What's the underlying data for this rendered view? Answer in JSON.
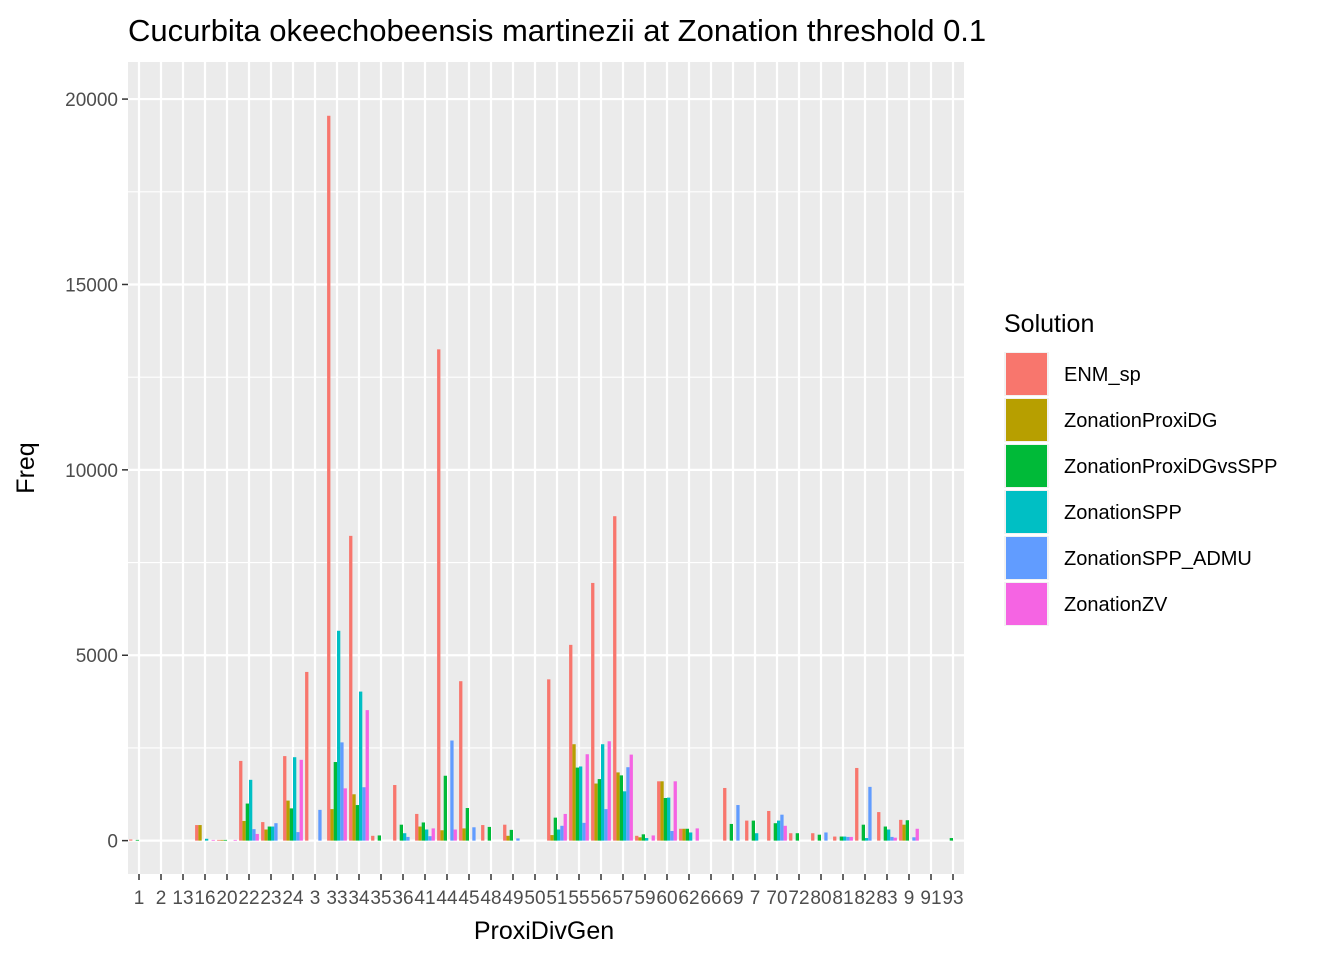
{
  "chart_data": {
    "type": "bar",
    "title": "Cucurbita okeechobeensis martinezii at Zonation threshold 0.1",
    "xlabel": "ProxiDivGen",
    "ylabel": "Freq",
    "ylim": [
      -900,
      21000
    ],
    "yticks": [
      0,
      5000,
      10000,
      15000,
      20000
    ],
    "grid": true,
    "legend_position": "right",
    "legend_title": "Solution",
    "categories": [
      "1",
      "2",
      "13",
      "16",
      "20",
      "22",
      "23",
      "24",
      "3",
      "33",
      "34",
      "35",
      "36",
      "41",
      "44",
      "45",
      "48",
      "49",
      "50",
      "51",
      "55",
      "56",
      "57",
      "59",
      "60",
      "62",
      "66",
      "69",
      "7",
      "70",
      "72",
      "80",
      "81",
      "82",
      "83",
      "9",
      "91",
      "93"
    ],
    "x_tick_labels": [
      "1",
      "2",
      "13",
      "16",
      "20",
      "22",
      "23",
      "24",
      "3",
      "33",
      "34",
      "35",
      "36",
      "41",
      "44",
      "45",
      "48",
      "49",
      "50",
      "51",
      "55",
      "56",
      "57",
      "59",
      "60",
      "62",
      "66",
      "69",
      "7",
      "70",
      "72",
      "80",
      "81",
      "82",
      "83",
      "9",
      "91",
      "93"
    ],
    "series": [
      {
        "name": "ENM_sp",
        "color": "#F8766D",
        "values": [
          30,
          0,
          0,
          420,
          20,
          2150,
          500,
          2280,
          4550,
          19550,
          8220,
          130,
          1500,
          720,
          13250,
          4300,
          420,
          430,
          0,
          4350,
          5280,
          6950,
          8750,
          130,
          1600,
          320,
          0,
          1420,
          540,
          800,
          200,
          200,
          110,
          1960,
          770,
          560,
          0,
          0
        ]
      },
      {
        "name": "ZonationProxiDG",
        "color": "#B79F00",
        "values": [
          0,
          0,
          0,
          420,
          20,
          530,
          300,
          1080,
          0,
          850,
          1250,
          0,
          0,
          380,
          280,
          330,
          0,
          130,
          0,
          150,
          2600,
          1540,
          1840,
          90,
          1600,
          320,
          0,
          0,
          0,
          0,
          0,
          0,
          0,
          0,
          0,
          430,
          0,
          0
        ]
      },
      {
        "name": "ZonationProxiDGvsSPP",
        "color": "#00BA38",
        "values": [
          20,
          0,
          0,
          0,
          20,
          1000,
          380,
          870,
          0,
          2120,
          960,
          140,
          430,
          490,
          1750,
          880,
          370,
          290,
          0,
          620,
          1970,
          1660,
          1760,
          170,
          1150,
          320,
          0,
          450,
          540,
          470,
          200,
          160,
          110,
          430,
          380,
          550,
          0,
          70
        ]
      },
      {
        "name": "ZonationSPP",
        "color": "#00BFC4",
        "values": [
          0,
          0,
          0,
          50,
          0,
          1640,
          380,
          2250,
          0,
          5660,
          4020,
          0,
          200,
          300,
          0,
          0,
          0,
          0,
          0,
          300,
          2000,
          2600,
          1330,
          70,
          1160,
          220,
          0,
          0,
          200,
          540,
          0,
          0,
          110,
          70,
          300,
          0,
          0,
          0
        ]
      },
      {
        "name": "ZonationSPP_ADMU",
        "color": "#619CFF",
        "values": [
          0,
          0,
          0,
          0,
          0,
          310,
          470,
          230,
          830,
          2650,
          1440,
          0,
          100,
          120,
          2700,
          360,
          0,
          60,
          0,
          400,
          480,
          850,
          1980,
          0,
          260,
          0,
          0,
          960,
          0,
          700,
          0,
          220,
          100,
          1450,
          100,
          90,
          0,
          0
        ]
      },
      {
        "name": "ZonationZV",
        "color": "#F564E3",
        "values": [
          0,
          0,
          0,
          20,
          20,
          180,
          0,
          2180,
          0,
          1410,
          3520,
          0,
          0,
          330,
          300,
          0,
          0,
          0,
          0,
          720,
          2330,
          2680,
          2320,
          140,
          1600,
          330,
          0,
          0,
          0,
          400,
          0,
          0,
          100,
          0,
          80,
          320,
          0,
          0
        ]
      }
    ]
  }
}
